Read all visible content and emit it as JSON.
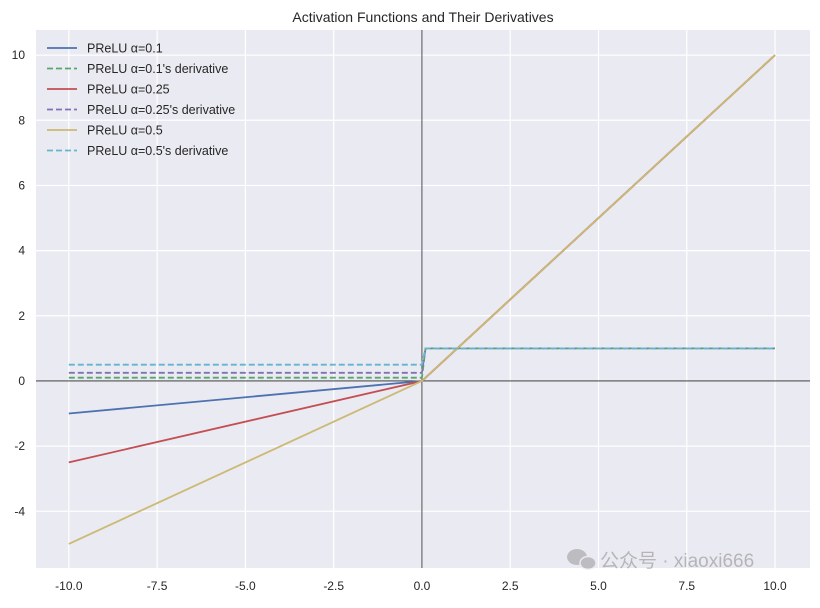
{
  "chart_data": {
    "type": "line",
    "title": "Activation Functions and Their Derivatives",
    "xlabel": "",
    "ylabel": "",
    "xlim": [
      -10.93,
      10.99
    ],
    "ylim": [
      -5.74,
      10.77
    ],
    "grid": true,
    "legend_position": "top-left",
    "x_ticks": [
      -10,
      -7.5,
      -5,
      -2.5,
      0,
      2.5,
      5,
      7.5,
      10
    ],
    "x_tick_labels": [
      "-10.0",
      "-7.5",
      "-5.0",
      "-2.5",
      "0.0",
      "2.5",
      "5.0",
      "7.5",
      "10.0"
    ],
    "y_ticks": [
      -4,
      -2,
      0,
      2,
      4,
      6,
      8,
      10
    ],
    "y_tick_labels": [
      "-4",
      "-2",
      "0",
      "2",
      "4",
      "6",
      "8",
      "10"
    ],
    "series": [
      {
        "name": "PReLU α=0.1",
        "color": "#4c72b0",
        "dashed": false,
        "x": [
          -10,
          0,
          10
        ],
        "y": [
          -1,
          0,
          10
        ]
      },
      {
        "name": "PReLU α=0.1's derivative",
        "color": "#55a868",
        "dashed": true,
        "x": [
          -10,
          0,
          0.1,
          10
        ],
        "y": [
          0.1,
          0.1,
          1,
          1
        ]
      },
      {
        "name": "PReLU α=0.25",
        "color": "#c44e52",
        "dashed": false,
        "x": [
          -10,
          0,
          10
        ],
        "y": [
          -2.5,
          0,
          10
        ]
      },
      {
        "name": "PReLU α=0.25's derivative",
        "color": "#8172b2",
        "dashed": true,
        "x": [
          -10,
          0,
          0.1,
          10
        ],
        "y": [
          0.25,
          0.25,
          1,
          1
        ]
      },
      {
        "name": "PReLU α=0.5",
        "color": "#ccb974",
        "dashed": false,
        "x": [
          -10,
          0,
          10
        ],
        "y": [
          -5,
          0,
          10
        ]
      },
      {
        "name": "PReLU α=0.5's derivative",
        "color": "#64b5cd",
        "dashed": true,
        "x": [
          -10,
          0,
          0.1,
          10
        ],
        "y": [
          0.5,
          0.5,
          1,
          1
        ]
      }
    ]
  },
  "watermark": "公众号 · xiaoxi666"
}
